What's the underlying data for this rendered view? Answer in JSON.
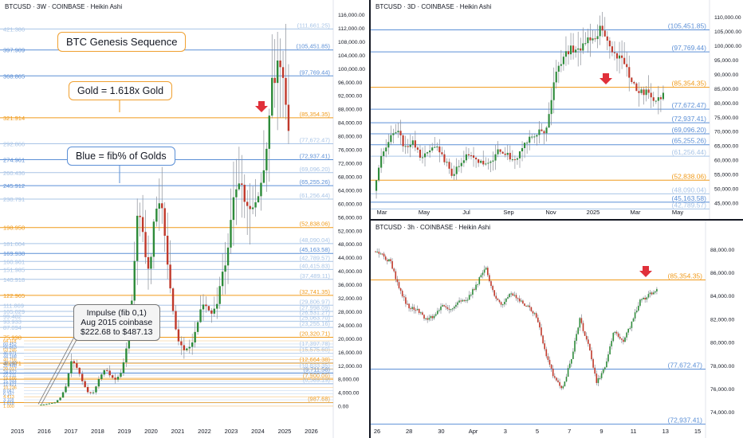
{
  "colors": {
    "orange": "#f09a1a",
    "blue": "#5b8fd6",
    "lightblue": "#a8c4e6",
    "up": "#2e8b3a",
    "down": "#c0392b",
    "bg": "#ffffff",
    "text": "#131722",
    "arrow": "#e0303a"
  },
  "annotations": {
    "title_box": "BTC Genesis Sequence",
    "gold_box": "Gold = 1.618x Gold",
    "blue_box": "Blue = fib% of Golds",
    "impulse_line1": "Impulse (fib 0,1)",
    "impulse_line2": "Aug 2015 coinbase",
    "impulse_line3": "$222.68 to $487.13"
  },
  "chart_data": [
    {
      "panel": "left",
      "type": "line",
      "title": "BTCUSD · 3W · COINBASE · Heikin Ashi",
      "ylim": [
        -1500,
        116000
      ],
      "x": [
        "2015",
        "2016",
        "2017",
        "2018",
        "2019",
        "2020",
        "2021",
        "2022",
        "2023",
        "2024",
        "2025",
        "2026"
      ],
      "yticks": [
        0,
        4000,
        8000,
        12000,
        16000,
        20000,
        24000,
        28000,
        32000,
        36000,
        40000,
        44000,
        48000,
        52000,
        56000,
        60000,
        64000,
        68000,
        72000,
        76000,
        80000,
        84000,
        88000,
        92000,
        96000,
        100000,
        104000,
        108000,
        112000,
        116000
      ],
      "ytick_labels": [
        "0.00",
        "4,000.00",
        "8,000.00",
        "12,000.00",
        "16,000.00",
        "20,000.00",
        "24,000.00",
        "28,000.00",
        "32,000.00",
        "36,000.00",
        "40,000.00",
        "44,000.00",
        "48,000.00",
        "52,000.00",
        "56,000.00",
        "60,000.00",
        "64,000.00",
        "68,000.00",
        "72,000.00",
        "76,000.00",
        "80,000.00",
        "84,000.00",
        "88,000.00",
        "92,000.00",
        "96,000.00",
        "100,000.00",
        "104,000.00",
        "108,000.00",
        "112,000.00",
        "116,000.00"
      ],
      "levels": [
        {
          "fib": "421.386",
          "price": "(111,661.25)",
          "v": 111661.25,
          "c": "lightblue"
        },
        {
          "fib": "397.909",
          "price": "(105,451.85)",
          "v": 105451.85,
          "c": "blue"
        },
        {
          "fib": "368.865",
          "price": "(97,769.44)",
          "v": 97769.44,
          "c": "blue"
        },
        {
          "fib": "321.914",
          "price": "(85,354.35)",
          "v": 85354.35,
          "c": "orange"
        },
        {
          "fib": "292.866",
          "price": "(77,672.47)",
          "v": 77672.47,
          "c": "lightblue"
        },
        {
          "fib": "274.961",
          "price": "(72,937.41)",
          "v": 72937.41,
          "c": "blue"
        },
        {
          "fib": "260.436",
          "price": "(69,096.20)",
          "v": 69096.2,
          "c": "lightblue"
        },
        {
          "fib": "245.912",
          "price": "(65,255.26)",
          "v": 65255.26,
          "c": "blue"
        },
        {
          "fib": "230.791",
          "price": "(61,256.44)",
          "v": 61256.44,
          "c": "lightblue"
        },
        {
          "fib": "198.958",
          "price": "(52,838.06)",
          "v": 52838.06,
          "c": "orange"
        },
        {
          "fib": "181.004",
          "price": "(48,090.04)",
          "v": 48090.04,
          "c": "lightblue"
        },
        {
          "fib": "169.938",
          "price": "(45,163.58)",
          "v": 45163.58,
          "c": "blue"
        },
        {
          "fib": "160.961",
          "price": "(42,789.57)",
          "v": 42789.57,
          "c": "lightblue"
        },
        {
          "fib": "151.985",
          "price": "(40,415.83)",
          "v": 40415.83,
          "c": "lightblue"
        },
        {
          "fib": "140.918",
          "price": "(37,489.11)",
          "v": 37489.11,
          "c": "lightblue"
        },
        {
          "fib": "122.965",
          "price": "(32,741.35)",
          "v": 32741.35,
          "c": "orange"
        },
        {
          "fib": "111.869",
          "price": "(29,806.97)",
          "v": 29806.97,
          "c": "lightblue"
        },
        {
          "fib": "105.029",
          "price": "(27,998.09)",
          "v": 27998.09,
          "c": "lightblue"
        },
        {
          "fib": "99.482",
          "price": "(26,531.27)",
          "v": 26531.27,
          "c": "lightblue"
        },
        {
          "fib": "93.933",
          "price": "(25,063.70)",
          "v": 25063.7,
          "c": "lightblue"
        },
        {
          "fib": "87.094",
          "price": "(23,255.16)",
          "v": 23255.16,
          "c": "lightblue"
        },
        {
          "fib": "75.998",
          "price": "(20,320.71)",
          "v": 20320.71,
          "c": "orange"
        },
        {
          "fib": "",
          "price": "(17,397.78)",
          "v": 17397.78,
          "c": "lightblue"
        },
        {
          "fib": "",
          "price": "(15,575.60)",
          "v": 15575.6,
          "c": "lightblue"
        },
        {
          "fib": "46.971",
          "price": "(12,664.38)",
          "v": 12664.38,
          "c": "orange"
        },
        {
          "fib": "",
          "price": "(10,833.35)",
          "v": 10833.35,
          "c": "lightblue"
        },
        {
          "fib": "",
          "price": "(9,711.58)",
          "v": 9711.58,
          "c": "blue"
        },
        {
          "fib": "",
          "price": "(7,900.06)",
          "v": 7900.06,
          "c": "orange"
        },
        {
          "fib": "",
          "price": "(6,589.19)",
          "v": 6589.19,
          "c": "lightblue"
        },
        {
          "fib": "",
          "price": "(987.68)",
          "v": 987.68,
          "c": "orange"
        }
      ],
      "dense_fib_labels": [
        "64.118",
        "60.452",
        "56.863",
        "53.245",
        "46.971",
        "44.188",
        "40.766",
        "38.349",
        "31.488",
        "29.017",
        "24.812",
        "22.211",
        "19.686",
        "15.944",
        "12.421",
        "10.236",
        "8.047",
        "6.187",
        "4.413",
        "3.118",
        "1.618",
        "1.000"
      ]
    },
    {
      "panel": "top-right",
      "type": "line",
      "title": "BTCUSD · 3D · COINBASE · Heikin Ashi",
      "ylim": [
        44000,
        112000
      ],
      "x": [
        "Mar",
        "May",
        "Jul",
        "Sep",
        "Nov",
        "2025",
        "Mar",
        "May"
      ],
      "yticks": [
        45000,
        50000,
        55000,
        60000,
        65000,
        70000,
        75000,
        80000,
        85000,
        90000,
        95000,
        100000,
        105000,
        110000
      ],
      "ytick_labels": [
        "45,000.00",
        "50,000.00",
        "55,000.00",
        "60,000.00",
        "65,000.00",
        "70,000.00",
        "75,000.00",
        "80,000.00",
        "85,000.00",
        "90,000.00",
        "95,000.00",
        "100,000.00",
        "105,000.00",
        "110,000.00"
      ],
      "levels": [
        {
          "price": "(105,451.85)",
          "v": 105451.85,
          "c": "blue"
        },
        {
          "price": "(97,769.44)",
          "v": 97769.44,
          "c": "blue"
        },
        {
          "price": "(85,354.35)",
          "v": 85354.35,
          "c": "orange"
        },
        {
          "price": "(77,672.47)",
          "v": 77672.47,
          "c": "blue"
        },
        {
          "price": "(72,937.41)",
          "v": 72937.41,
          "c": "blue"
        },
        {
          "price": "(69,096.20)",
          "v": 69096.2,
          "c": "blue"
        },
        {
          "price": "(65,255.26)",
          "v": 65255.26,
          "c": "blue"
        },
        {
          "price": "(61,256.44)",
          "v": 61256.44,
          "c": "lightblue"
        },
        {
          "price": "(52,838.06)",
          "v": 52838.06,
          "c": "orange"
        },
        {
          "price": "(48,090.04)",
          "v": 48090.04,
          "c": "lightblue"
        },
        {
          "price": "(45,163.58)",
          "v": 45163.58,
          "c": "blue"
        },
        {
          "price": "(42,789.57)",
          "v": 42789.57,
          "c": "lightblue"
        }
      ]
    },
    {
      "panel": "bottom-right",
      "type": "line",
      "title": "BTCUSD · 3h · COINBASE · Heikin Ashi",
      "ylim": [
        72500,
        89500
      ],
      "x": [
        "26",
        "28",
        "30",
        "Apr",
        "3",
        "5",
        "7",
        "9",
        "11",
        "13",
        "15"
      ],
      "yticks": [
        74000,
        76000,
        78000,
        80000,
        82000,
        84000,
        86000,
        88000
      ],
      "ytick_labels": [
        "74,000.00",
        "76,000.00",
        "78,000.00",
        "80,000.00",
        "82,000.00",
        "84,000.00",
        "86,000.00",
        "88,000.00"
      ],
      "levels": [
        {
          "price": "(85,354.35)",
          "v": 85354.35,
          "c": "orange"
        },
        {
          "price": "(77,672.47)",
          "v": 77672.47,
          "c": "blue"
        },
        {
          "price": "(72,937.41)",
          "v": 72937.41,
          "c": "blue"
        }
      ]
    }
  ]
}
